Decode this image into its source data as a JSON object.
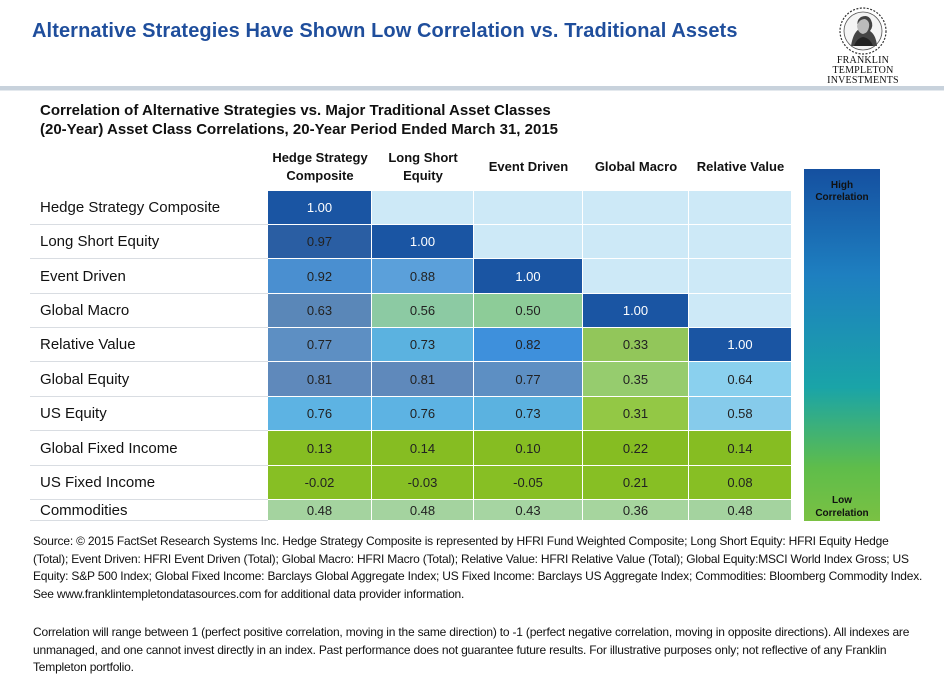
{
  "page_title": "Alternative Strategies Have Shown Low Correlation vs. Traditional Assets",
  "logo": {
    "line1": "FRANKLIN TEMPLETON",
    "line2": "INVESTMENTS"
  },
  "chart_data": {
    "type": "table",
    "title_line1": "Correlation of Alternative Strategies vs. Major Traditional Asset Classes",
    "title_line2": "(20-Year) Asset Class Correlations, 20-Year Period Ended March 31, 2015",
    "columns": [
      {
        "line1": "Hedge Strategy",
        "line2": "Composite"
      },
      {
        "line1": "Long Short",
        "line2": "Equity"
      },
      {
        "line1": "Event Driven",
        "line2": ""
      },
      {
        "line1": "Global Macro",
        "line2": ""
      },
      {
        "line1": "Relative Value",
        "line2": ""
      }
    ],
    "rows": [
      {
        "label": "Hedge Strategy Composite",
        "values": [
          "1.00",
          null,
          null,
          null,
          null
        ]
      },
      {
        "label": "Long Short Equity",
        "values": [
          "0.97",
          "1.00",
          null,
          null,
          null
        ]
      },
      {
        "label": "Event Driven",
        "values": [
          "0.92",
          "0.88",
          "1.00",
          null,
          null
        ]
      },
      {
        "label": "Global Macro",
        "values": [
          "0.63",
          "0.56",
          "0.50",
          "1.00",
          null
        ]
      },
      {
        "label": "Relative Value",
        "values": [
          "0.77",
          "0.73",
          "0.82",
          "0.33",
          "1.00"
        ]
      },
      {
        "label": "Global Equity",
        "values": [
          "0.81",
          "0.81",
          "0.77",
          "0.35",
          "0.64"
        ]
      },
      {
        "label": "US Equity",
        "values": [
          "0.76",
          "0.76",
          "0.73",
          "0.31",
          "0.58"
        ]
      },
      {
        "label": "Global Fixed Income",
        "values": [
          "0.13",
          "0.14",
          "0.10",
          "0.22",
          "0.14"
        ]
      },
      {
        "label": "US Fixed Income",
        "values": [
          "-0.02",
          "-0.03",
          "-0.05",
          "0.21",
          "0.08"
        ]
      },
      {
        "label": "Commodities",
        "values": [
          "0.48",
          "0.48",
          "0.43",
          "0.36",
          "0.48"
        ]
      }
    ],
    "legend": {
      "high": "High Correlation",
      "low": "Low Correlation"
    },
    "colors": {
      "empty": "#cde9f7",
      "dark_blue": "#1a55a3"
    }
  },
  "source_text": "Source: © 2015 FactSet Research Systems Inc. Hedge Strategy Composite is represented by HFRI Fund Weighted Composite; Long Short Equity: HFRI Equity Hedge (Total); Event Driven: HFRI Event Driven (Total); Global Macro: HFRI Macro (Total); Relative Value: HFRI Relative Value (Total); Global Equity:MSCI World Index Gross; US Equity: S&P 500 Index; Global Fixed Income: Barclays Global Aggregate Index; US Fixed Income: Barclays US Aggregate Index; Commodities: Bloomberg Commodity Index. See www.franklintempletondatasources.com for additional data provider information.",
  "disclaimer_text": "Correlation will range between 1 (perfect positive correlation, moving in the same direction) to -1 (perfect negative correlation, moving in opposite directions). All indexes are unmanaged, and one cannot invest directly in an index. Past performance does not guarantee future results. For illustrative purposes only; not reflective of any Franklin Templeton portfolio."
}
